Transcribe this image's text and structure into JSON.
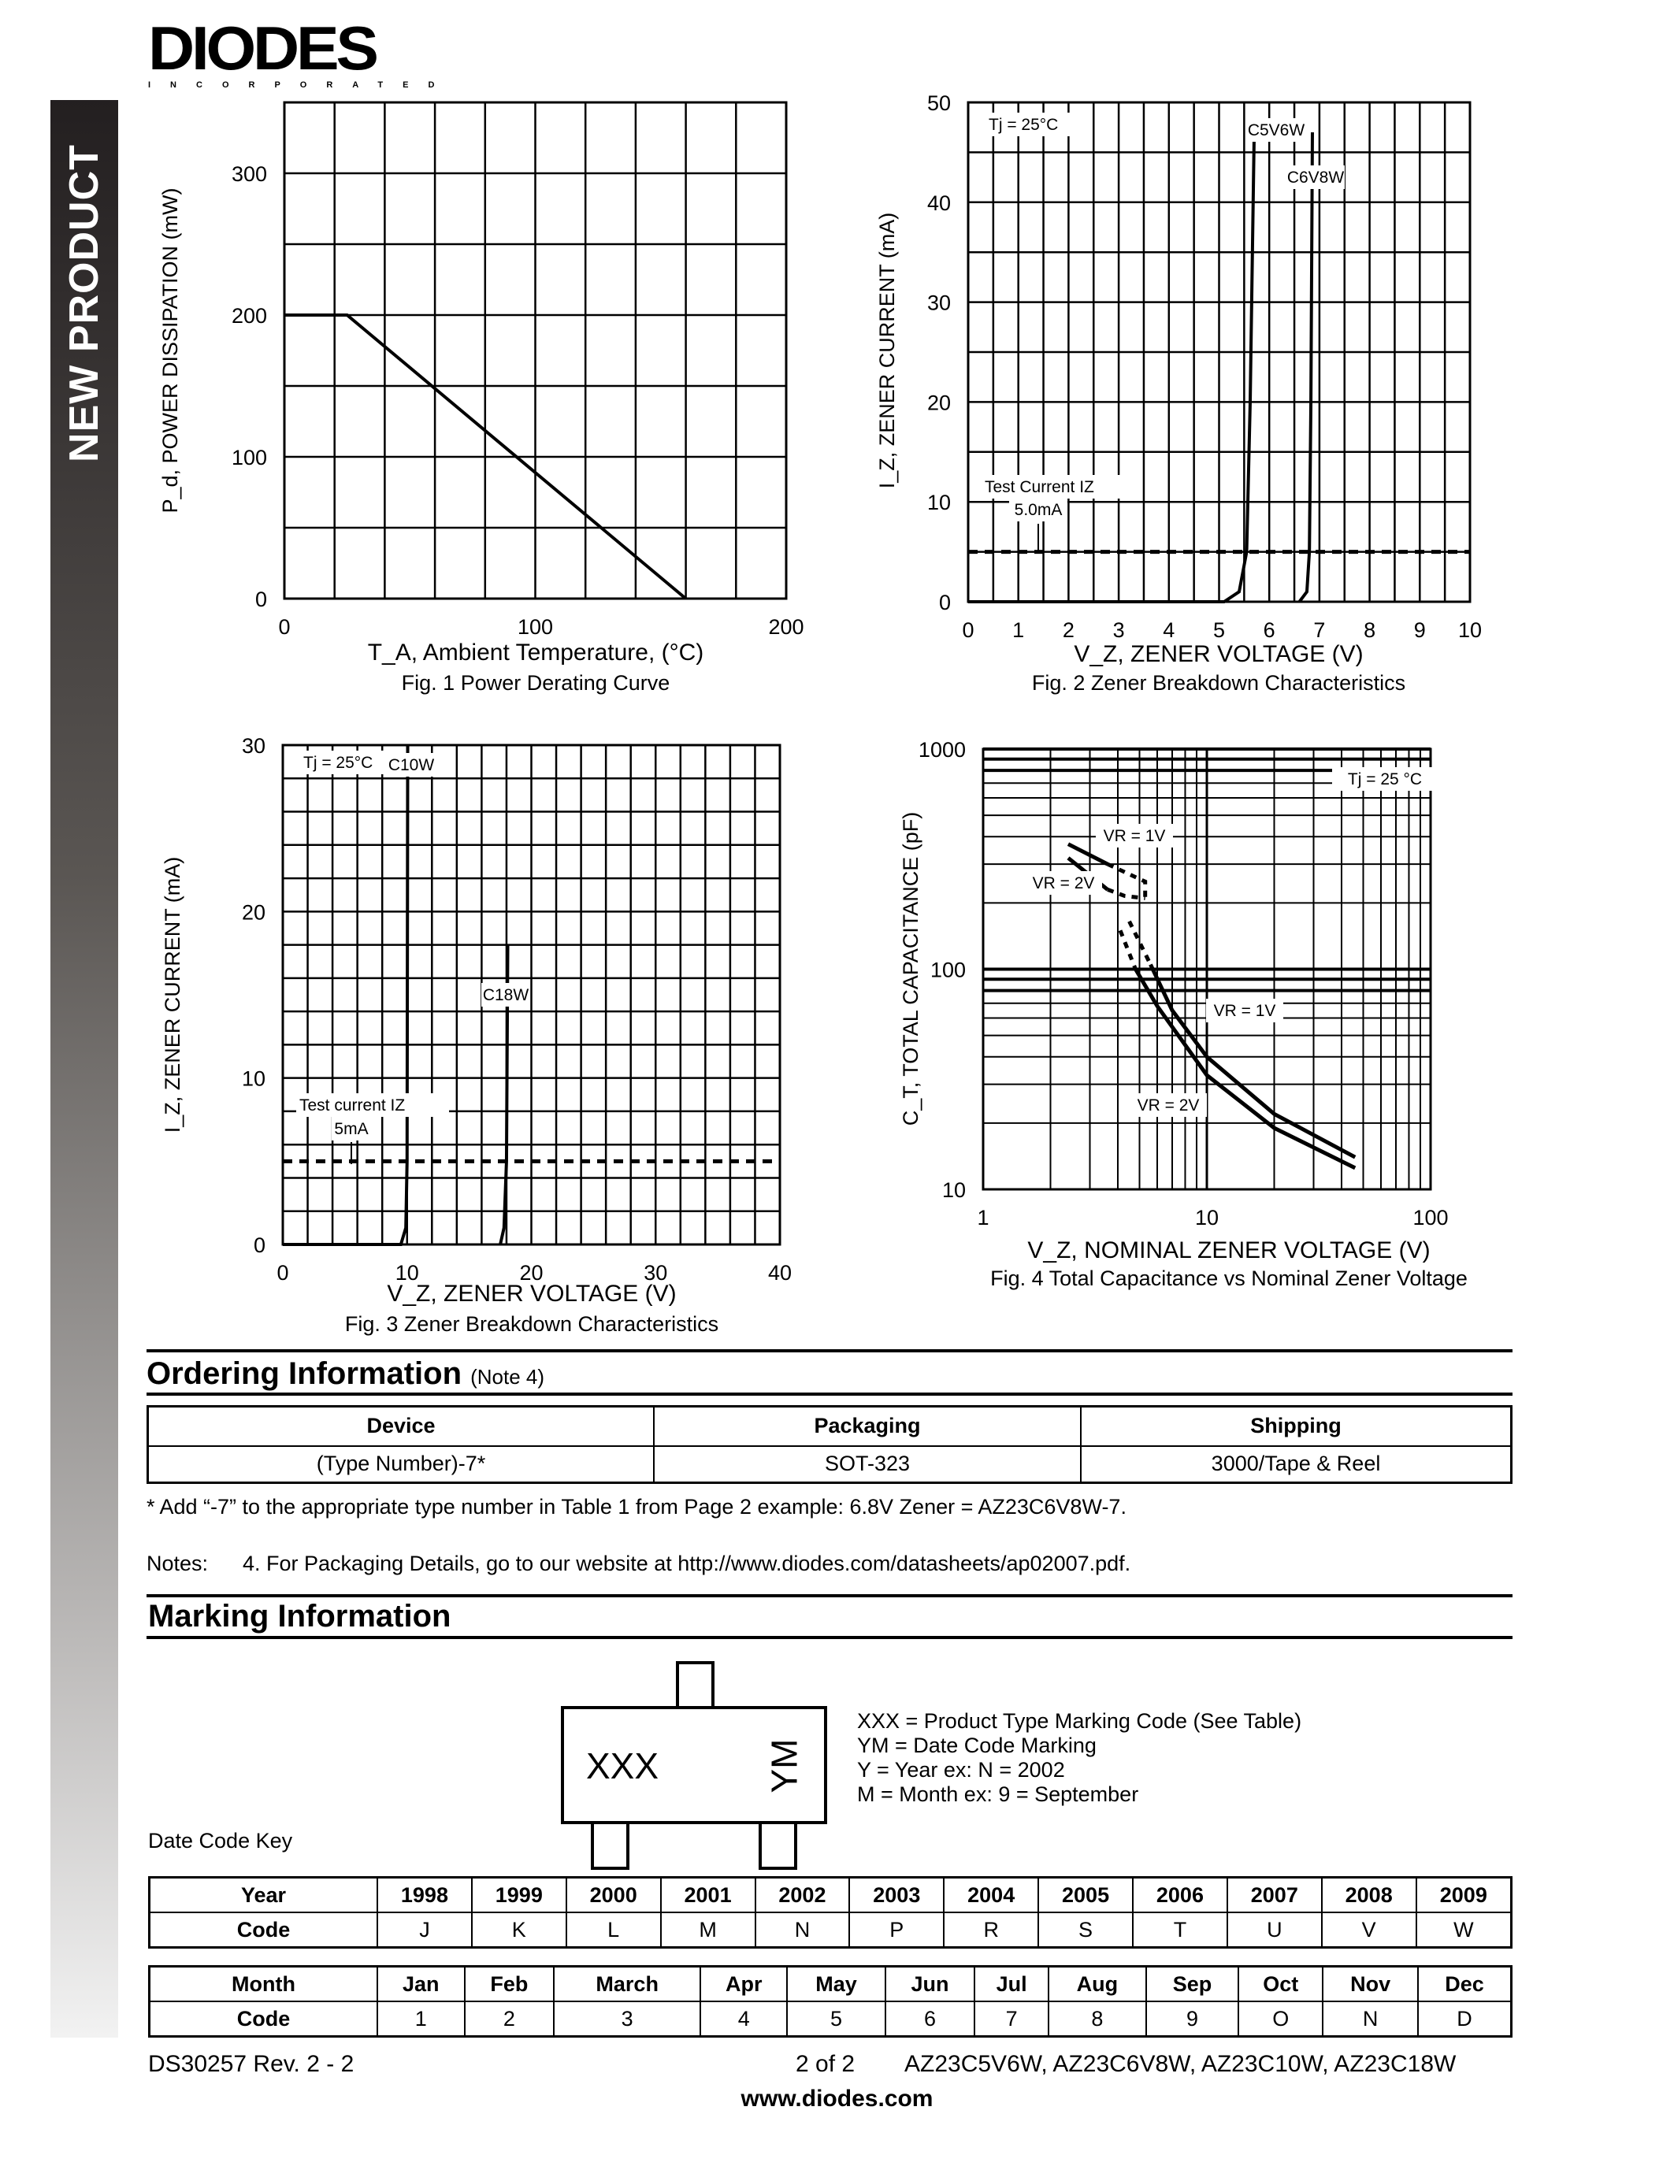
{
  "brand": {
    "logo_text": "DIODES",
    "logo_sub": "INCORPORATED",
    "side_banner": "NEW PRODUCT"
  },
  "chart_data": [
    {
      "id": "fig1",
      "type": "line",
      "title": "Fig. 1  Power Derating Curve",
      "xlabel": "T_A, Ambient Temperature, (°C)",
      "ylabel": "P_d, POWER DISSIPATION (mW)",
      "xlim": [
        0,
        200
      ],
      "ylim": [
        0,
        350
      ],
      "xticks": [
        0,
        100,
        200
      ],
      "yticks": [
        0,
        100,
        200,
        300
      ],
      "grid": true,
      "xgrid_step": 20,
      "ygrid_step": 50,
      "series": [
        {
          "points": [
            [
              0,
              200
            ],
            [
              25,
              200
            ],
            [
              160,
              0
            ]
          ]
        }
      ],
      "annotations": []
    },
    {
      "id": "fig2",
      "type": "line",
      "title": "Fig. 2  Zener Breakdown Characteristics",
      "xlabel": "V_Z, ZENER VOLTAGE (V)",
      "ylabel": "I_Z, ZENER CURRENT (mA)",
      "xlim": [
        0,
        10
      ],
      "ylim": [
        0,
        50
      ],
      "xticks": [
        0,
        1,
        2,
        3,
        4,
        5,
        6,
        7,
        8,
        9,
        10
      ],
      "yticks": [
        0,
        10,
        20,
        30,
        40,
        50
      ],
      "grid": true,
      "xgrid_step": 0.5,
      "ygrid_step": 5,
      "series": [
        {
          "name": "C5V6W",
          "points": [
            [
              0,
              0
            ],
            [
              5.1,
              0
            ],
            [
              5.4,
              1
            ],
            [
              5.55,
              5
            ],
            [
              5.62,
              20
            ],
            [
              5.7,
              47
            ]
          ]
        },
        {
          "name": "C6V8W",
          "points": [
            [
              6.6,
              0
            ],
            [
              6.75,
              1
            ],
            [
              6.8,
              5
            ],
            [
              6.83,
              20
            ],
            [
              6.86,
              47
            ]
          ]
        }
      ],
      "reference_line": {
        "y": 5,
        "style": "dashed"
      },
      "annotations": [
        "Tj = 25°C",
        "C5V6W",
        "C6V8W",
        "Test Current IZ",
        "5.0mA"
      ]
    },
    {
      "id": "fig3",
      "type": "line",
      "title": "Fig. 3  Zener Breakdown Characteristics",
      "xlabel": "V_Z, ZENER VOLTAGE (V)",
      "ylabel": "I_Z, ZENER CURRENT (mA)",
      "xlim": [
        0,
        40
      ],
      "ylim": [
        0,
        30
      ],
      "xticks": [
        0,
        10,
        20,
        30,
        40
      ],
      "yticks": [
        0,
        10,
        20,
        30
      ],
      "grid": true,
      "xgrid_step": 2,
      "ygrid_step": 2,
      "series": [
        {
          "name": "C10W",
          "points": [
            [
              0,
              0
            ],
            [
              9.5,
              0
            ],
            [
              9.9,
              1
            ],
            [
              10,
              5
            ],
            [
              10.05,
              30
            ]
          ]
        },
        {
          "name": "C18W",
          "points": [
            [
              17.5,
              0
            ],
            [
              17.8,
              1
            ],
            [
              18,
              5
            ],
            [
              18.1,
              18
            ]
          ]
        }
      ],
      "reference_line": {
        "y": 5,
        "style": "dashed"
      },
      "annotations": [
        "Tj = 25°C",
        "C10W",
        "C18W",
        "Test current IZ",
        "5mA"
      ]
    },
    {
      "id": "fig4",
      "type": "line",
      "scale": "log-log",
      "title": "Fig. 4  Total Capacitance vs Nominal Zener Voltage",
      "xlabel": "V_Z, NOMINAL ZENER VOLTAGE (V)",
      "ylabel": "C_T, TOTAL CAPACITANCE (pF)",
      "xlim": [
        1,
        100
      ],
      "ylim": [
        10,
        1000
      ],
      "xticks": [
        1,
        10,
        100
      ],
      "yticks": [
        10,
        100,
        1000
      ],
      "grid": true,
      "series": [
        {
          "name": "VR = 1V",
          "solid": [
            [
              [
                2.4,
                370
              ],
              [
                3.6,
                300
              ]
            ],
            [
              [
                5.6,
                105
              ],
              [
                7,
                65
              ],
              [
                10,
                40
              ],
              [
                20,
                22
              ],
              [
                46,
                14
              ]
            ]
          ],
          "dashed": [
            [
              [
                3.6,
                300
              ],
              [
                5.3,
                250
              ],
              [
                5.3,
                210
              ]
            ],
            [
              [
                4.5,
                165
              ],
              [
                5.6,
                105
              ]
            ]
          ]
        },
        {
          "name": "VR = 2V",
          "solid": [
            [
              [
                2.4,
                320
              ],
              [
                3.6,
                230
              ]
            ],
            [
              [
                4.8,
                100
              ],
              [
                6,
                68
              ],
              [
                10,
                33
              ],
              [
                20,
                19
              ],
              [
                46,
                12.5
              ]
            ]
          ],
          "dashed": [
            [
              [
                3.6,
                230
              ],
              [
                4.3,
                215
              ],
              [
                5.3,
                210
              ]
            ],
            [
              [
                4.1,
                150
              ],
              [
                4.8,
                100
              ]
            ]
          ]
        }
      ],
      "annotations": [
        "Tj = 25 °C",
        "VR = 1V",
        "VR = 2V",
        "VR = 1V",
        "VR = 2V"
      ]
    }
  ],
  "ordering": {
    "heading": "Ordering Information",
    "note_ref": "(Note 4)",
    "headers": [
      "Device",
      "Packaging",
      "Shipping"
    ],
    "rows": [
      [
        "(Type Number)-7*",
        "SOT-323",
        "3000/Tape & Reel"
      ]
    ],
    "footnote": "* Add “-7” to the appropriate type number in Table 1 from Page 2 example:  6.8V Zener = AZ23C6V8W-7.",
    "notes_label": "Notes:",
    "note4": "4.  For Packaging Details, go to our website at http://www.diodes.com/datasheets/ap02007.pdf."
  },
  "marking": {
    "heading": "Marking Information",
    "pkg_xxx": "XXX",
    "pkg_ym": "YM",
    "legend": [
      "XXX = Product Type Marking Code (See Table)",
      "YM = Date Code Marking",
      "Y = Year ex: N = 2002",
      "M = Month ex: 9 = September"
    ],
    "date_code_key": "Date Code Key",
    "year_table": {
      "row1_label": "Year",
      "row2_label": "Code",
      "years": [
        "1998",
        "1999",
        "2000",
        "2001",
        "2002",
        "2003",
        "2004",
        "2005",
        "2006",
        "2007",
        "2008",
        "2009"
      ],
      "codes": [
        "J",
        "K",
        "L",
        "M",
        "N",
        "P",
        "R",
        "S",
        "T",
        "U",
        "V",
        "W"
      ]
    },
    "month_table": {
      "row1_label": "Month",
      "row2_label": "Code",
      "months": [
        "Jan",
        "Feb",
        "March",
        "Apr",
        "May",
        "Jun",
        "Jul",
        "Aug",
        "Sep",
        "Oct",
        "Nov",
        "Dec"
      ],
      "codes": [
        "1",
        "2",
        "3",
        "4",
        "5",
        "6",
        "7",
        "8",
        "9",
        "O",
        "N",
        "D"
      ]
    }
  },
  "footer": {
    "doc": "DS30257 Rev. 2 - 2",
    "page": "2 of 2",
    "parts": "AZ23C5V6W, AZ23C6V8W, AZ23C10W, AZ23C18W",
    "website": "www.diodes.com"
  }
}
